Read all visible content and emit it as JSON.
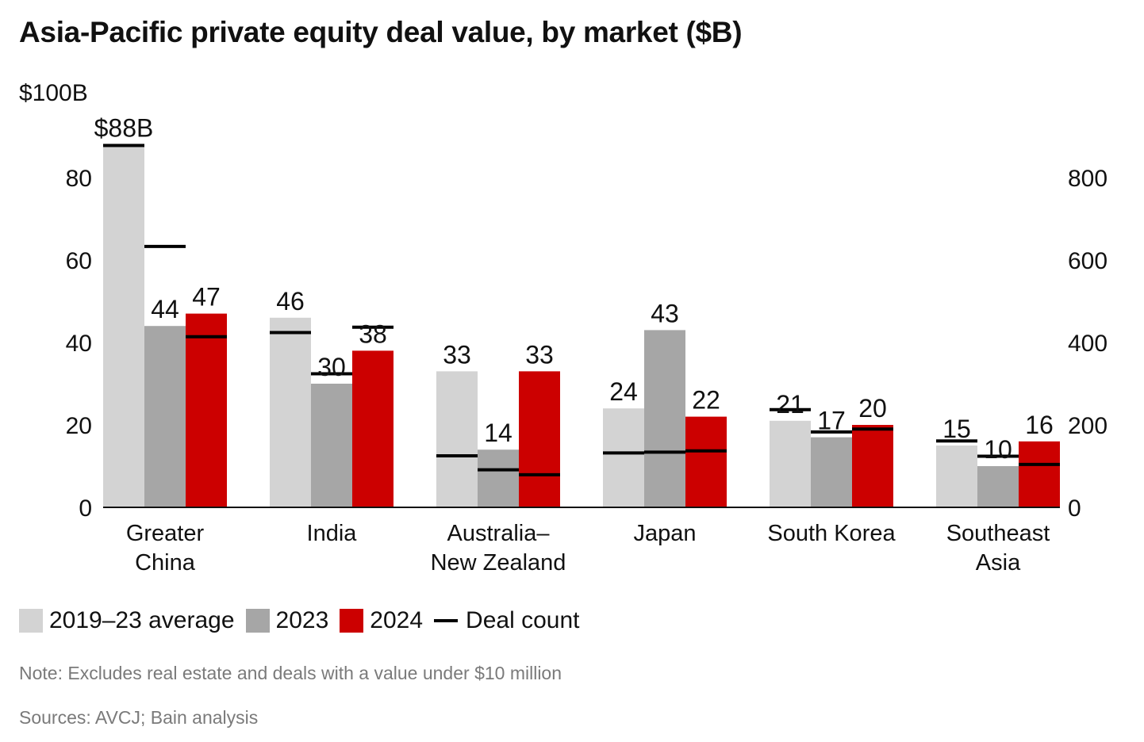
{
  "title": "Asia-Pacific private equity deal value, by market ($B)",
  "chart_data": {
    "type": "bar",
    "title": "Asia-Pacific private equity deal value, by market ($B)",
    "categories": [
      [
        "Greater",
        "China"
      ],
      [
        "India"
      ],
      [
        "Australia–",
        "New Zealand"
      ],
      [
        "Japan"
      ],
      [
        "South Korea"
      ],
      [
        "Southeast",
        "Asia"
      ]
    ],
    "series": [
      {
        "name": "2019–23 average",
        "color": "#d3d3d3",
        "values": [
          88,
          46,
          33,
          24,
          21,
          15
        ],
        "labels": [
          "$88B",
          "46",
          "33",
          "24",
          "21",
          "15"
        ]
      },
      {
        "name": "2023",
        "color": "#a6a6a6",
        "values": [
          44,
          30,
          14,
          43,
          17,
          10
        ],
        "labels": [
          "44",
          "30",
          "14",
          "43",
          "17",
          "10"
        ]
      },
      {
        "name": "2024",
        "color": "#cc0000",
        "values": [
          47,
          38,
          33,
          22,
          20,
          16
        ],
        "labels": [
          "47",
          "38",
          "33",
          "22",
          "20",
          "16"
        ]
      }
    ],
    "deal_count": {
      "name": "Deal count",
      "axis": "right",
      "values": [
        [
          878,
          633,
          414
        ],
        [
          424,
          324,
          437
        ],
        [
          125,
          91,
          79
        ],
        [
          132,
          134,
          137
        ],
        [
          237,
          183,
          190
        ],
        [
          161,
          124,
          104
        ]
      ]
    },
    "y_left": {
      "min": 0,
      "max": 100,
      "ticks": [
        0,
        20,
        40,
        60,
        80
      ],
      "ticks_labels": [
        "0",
        "20",
        "40",
        "60",
        "80"
      ],
      "top_label": "$100B"
    },
    "y_right": {
      "min": 0,
      "max": 1000,
      "ticks": [
        0,
        200,
        400,
        600,
        800
      ],
      "ticks_labels": [
        "0",
        "200",
        "400",
        "600",
        "800"
      ]
    },
    "legend": [
      "2019–23 average",
      "2023",
      "2024",
      "Deal count"
    ]
  },
  "legend": {
    "avg": "2019–23 average",
    "y2023": "2023",
    "y2024": "2024",
    "deal_count": "Deal count"
  },
  "colors": {
    "avg": "#d3d3d3",
    "y2023": "#a6a6a6",
    "y2024": "#cc0000",
    "deal_line": "#000000"
  },
  "note": "Note: Excludes real estate and deals with a value under $10 million",
  "sources": "Sources: AVCJ; Bain analysis"
}
